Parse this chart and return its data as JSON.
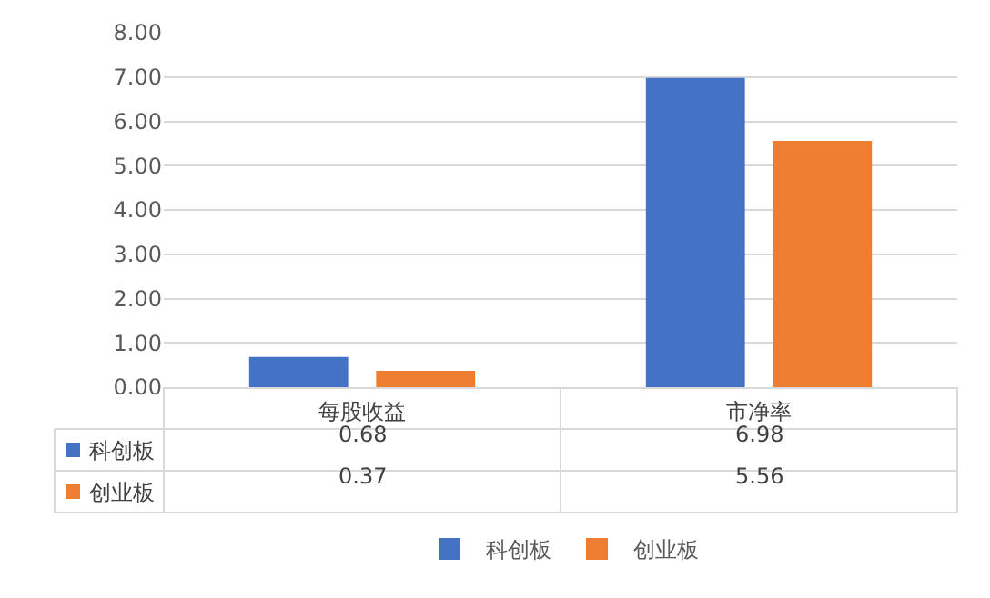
{
  "chart_data": {
    "type": "bar",
    "categories": [
      "每股收益",
      "市净率"
    ],
    "series": [
      {
        "name": "科创板",
        "color": "#4472c4",
        "values": [
          0.68,
          6.98
        ]
      },
      {
        "name": "创业板",
        "color": "#ed7d31",
        "values": [
          0.37,
          5.56
        ]
      }
    ],
    "ylim": [
      0,
      8
    ],
    "yticks": [
      {
        "value": 0,
        "label": "0.00"
      },
      {
        "value": 1,
        "label": "1.00"
      },
      {
        "value": 2,
        "label": "2.00"
      },
      {
        "value": 3,
        "label": "3.00"
      },
      {
        "value": 4,
        "label": "4.00"
      },
      {
        "value": 5,
        "label": "5.00"
      },
      {
        "value": 6,
        "label": "6.00"
      },
      {
        "value": 7,
        "label": "7.00"
      },
      {
        "value": 8,
        "label": "8.00"
      }
    ],
    "grid": "y",
    "legend": "bottom",
    "data_labels": true
  }
}
